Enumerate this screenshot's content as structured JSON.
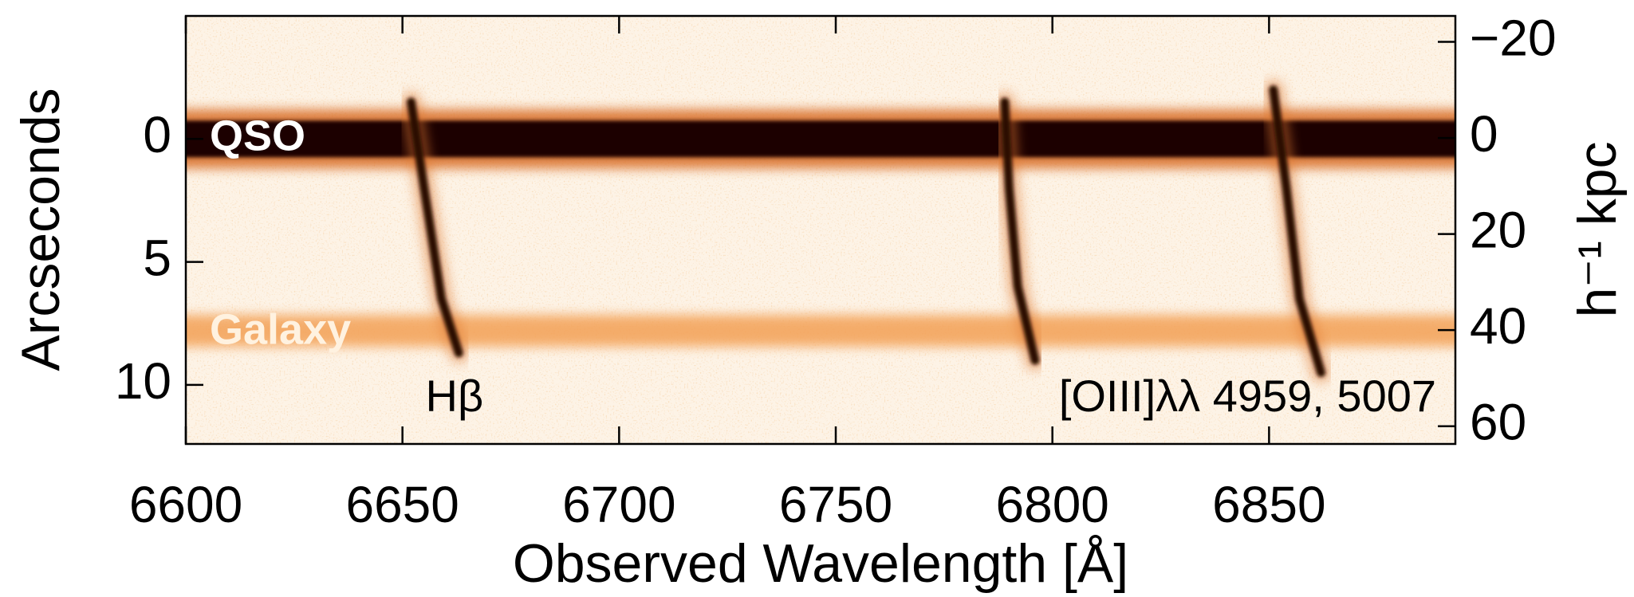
{
  "chart_data": {
    "type": "spectrum2d",
    "xlabel": "Observed Wavelength [Å]",
    "ylabel": "Arcseconds",
    "y2label": "h⁻¹ kpc",
    "xlim": [
      6600,
      6893
    ],
    "ylim": [
      -5,
      12.4
    ],
    "y_inverted": true,
    "y2lim": [
      -25.4,
      63.7
    ],
    "xticks": [
      6600,
      6650,
      6700,
      6750,
      6800,
      6850
    ],
    "yticks": [
      0,
      5,
      10
    ],
    "y2ticks": [
      {
        "value": -20,
        "label": "−20"
      },
      0,
      20,
      40,
      60
    ],
    "background": "#fdf3e6",
    "traces": [
      {
        "name": "QSO",
        "y": 0,
        "color": "#1a0600"
      },
      {
        "name": "Galaxy",
        "y": 7.8,
        "color": "#f3a055"
      }
    ],
    "lines": [
      {
        "x": [
          6652,
          6655,
          6659,
          6663
        ],
        "y": [
          -1.5,
          2,
          6.5,
          8.7
        ]
      },
      {
        "x": [
          6789,
          6790,
          6792,
          6796
        ],
        "y": [
          -1.5,
          2,
          6,
          9
        ]
      },
      {
        "x": [
          6851,
          6854,
          6857,
          6862
        ],
        "y": [
          -2,
          2,
          6.5,
          9.5
        ]
      }
    ],
    "line_color": "#2a0a00",
    "annotations": [
      "Hβ",
      "[OIII]λλ 4959, 5007"
    ]
  }
}
